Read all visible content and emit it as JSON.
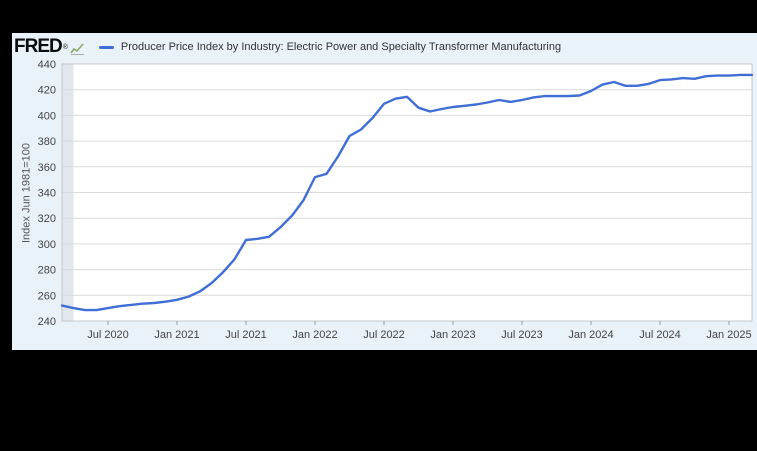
{
  "page": {
    "background": "#000000"
  },
  "header": {
    "logo_text": "FRED",
    "logo_registered": "®",
    "sparkline_icon": "fred-sparkline-icon"
  },
  "colors": {
    "card_bg": "#e9f1f9",
    "plot_bg": "#ffffff",
    "gridline": "#d9d9d9",
    "plot_border": "#c8c8c8",
    "tick_mark": "#9a9a9a",
    "axis_text": "#444444",
    "line": "#3f6ed6",
    "recession_band": "#e2e7ee"
  },
  "chart_data": {
    "type": "line",
    "title": "Producer Price Index by Industry: Electric Power and Specialty Transformer Manufacturing",
    "ylabel": "Index Jun 1981=100",
    "ylim": [
      240,
      440
    ],
    "yticks": [
      240,
      260,
      280,
      300,
      320,
      340,
      360,
      380,
      400,
      420,
      440
    ],
    "x_start": "2020-03",
    "x_end": "2025-03",
    "frequency": "monthly",
    "x_tick_labels": [
      "Jul 2020",
      "Jan 2021",
      "Jul 2021",
      "Jan 2022",
      "Jul 2022",
      "Jan 2023",
      "Jul 2023",
      "Jan 2024",
      "Jul 2024",
      "Jan 2025"
    ],
    "x_tick_month_indices": [
      4,
      10,
      16,
      22,
      28,
      34,
      40,
      46,
      52,
      58
    ],
    "grid": true,
    "legend_position": "top-left",
    "recession_band": {
      "start_month_index": 0,
      "end_month_index": 1
    },
    "series": [
      {
        "name": "Producer Price Index by Industry: Electric Power and Specialty Transformer Manufacturing",
        "color": "#3f6ed6",
        "values": [
          252,
          250,
          248.5,
          248.5,
          250,
          251.5,
          252.5,
          253.5,
          254,
          255,
          256.5,
          259,
          263,
          269.5,
          278,
          288,
          303,
          304,
          305.5,
          313,
          322,
          334,
          352,
          354.5,
          368,
          384,
          389,
          398,
          409,
          413,
          414.5,
          406,
          403,
          405,
          406.5,
          407.5,
          408.5,
          410,
          412,
          410.5,
          412,
          414,
          415,
          415,
          415,
          415.5,
          419,
          424,
          426,
          423,
          423,
          424.5,
          427.5,
          428,
          429,
          428.5,
          430.5,
          431,
          431,
          431.5,
          431.5
        ]
      }
    ]
  }
}
